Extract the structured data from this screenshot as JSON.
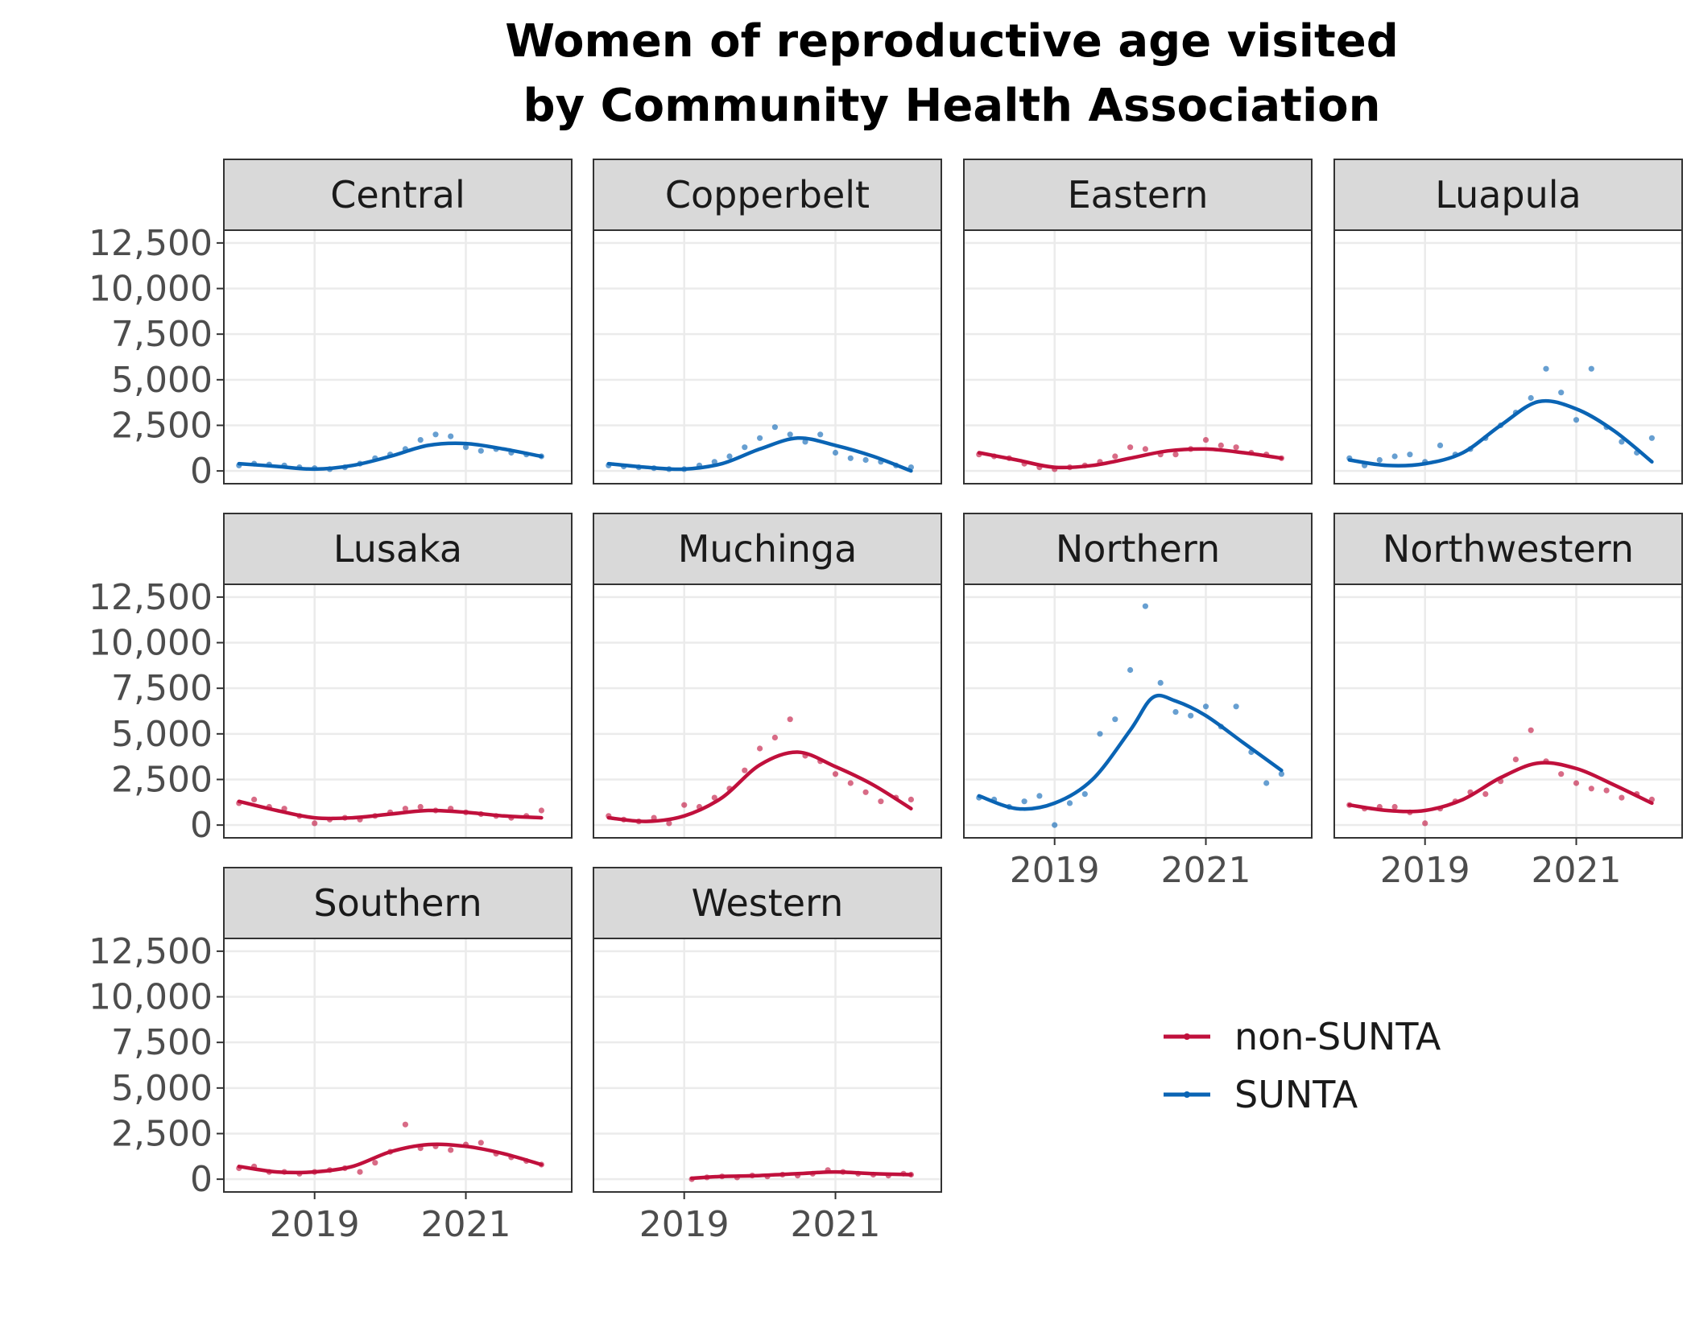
{
  "chart_data": {
    "type": "line",
    "title_lines": [
      "Women of reproductive age visited",
      "by Community Health Association"
    ],
    "xlabel": "",
    "ylabel": "",
    "xlim": [
      2017.8,
      2022.4
    ],
    "ylim": [
      -700,
      13200
    ],
    "x_ticks": [
      2019,
      2021
    ],
    "x_tick_labels": [
      "2019",
      "2021"
    ],
    "y_ticks": [
      0,
      2500,
      5000,
      7500,
      10000,
      12500
    ],
    "y_tick_labels": [
      "0",
      "2,500",
      "5,000",
      "7,500",
      "10,000",
      "12,500"
    ],
    "grid": true,
    "facet_layout": "wrap 4 columns",
    "legend": {
      "placement": "bottom-right empty facet area",
      "entries": [
        {
          "label": "non-SUNTA",
          "color": "#c0103c"
        },
        {
          "label": "SUNTA",
          "color": "#0a64b4"
        }
      ]
    },
    "colors": {
      "non-SUNTA": "#c0103c",
      "SUNTA": "#0a64b4",
      "strip_fill": "#d9d9d9",
      "grid": "#ebebeb"
    },
    "facets": [
      {
        "name": "Central",
        "group": "SUNTA",
        "smooth": {
          "x": [
            2018.0,
            2018.5,
            2019.0,
            2019.5,
            2020.0,
            2020.5,
            2021.0,
            2021.5,
            2022.0
          ],
          "y": [
            400,
            250,
            100,
            300,
            800,
            1400,
            1500,
            1200,
            800
          ]
        },
        "points": {
          "x": [
            2018.0,
            2018.2,
            2018.4,
            2018.6,
            2018.8,
            2019.0,
            2019.2,
            2019.4,
            2019.6,
            2019.8,
            2020.0,
            2020.2,
            2020.4,
            2020.6,
            2020.8,
            2021.0,
            2021.2,
            2021.4,
            2021.6,
            2021.8,
            2022.0
          ],
          "y": [
            300,
            400,
            350,
            300,
            200,
            150,
            100,
            200,
            400,
            700,
            900,
            1200,
            1700,
            2000,
            1900,
            1300,
            1100,
            1200,
            1000,
            900,
            800
          ]
        }
      },
      {
        "name": "Copperbelt",
        "group": "SUNTA",
        "smooth": {
          "x": [
            2018.0,
            2018.5,
            2019.0,
            2019.5,
            2020.0,
            2020.5,
            2021.0,
            2021.5,
            2022.0
          ],
          "y": [
            400,
            200,
            100,
            400,
            1200,
            1800,
            1400,
            800,
            0
          ]
        },
        "points": {
          "x": [
            2018.0,
            2018.2,
            2018.4,
            2018.6,
            2018.8,
            2019.0,
            2019.2,
            2019.4,
            2019.6,
            2019.8,
            2020.0,
            2020.2,
            2020.4,
            2020.6,
            2020.8,
            2021.0,
            2021.2,
            2021.4,
            2021.6,
            2021.8,
            2022.0
          ],
          "y": [
            300,
            250,
            200,
            150,
            100,
            100,
            300,
            500,
            800,
            1300,
            1800,
            2400,
            2000,
            1600,
            2000,
            1000,
            700,
            600,
            500,
            300,
            200
          ]
        }
      },
      {
        "name": "Eastern",
        "group": "non-SUNTA",
        "smooth": {
          "x": [
            2018.0,
            2018.5,
            2019.0,
            2019.5,
            2020.0,
            2020.5,
            2021.0,
            2021.5,
            2022.0
          ],
          "y": [
            1000,
            600,
            200,
            300,
            700,
            1100,
            1200,
            1000,
            700
          ]
        },
        "points": {
          "x": [
            2018.0,
            2018.2,
            2018.4,
            2018.6,
            2018.8,
            2019.0,
            2019.2,
            2019.4,
            2019.6,
            2019.8,
            2020.0,
            2020.2,
            2020.4,
            2020.6,
            2020.8,
            2021.0,
            2021.2,
            2021.4,
            2021.6,
            2021.8,
            2022.0
          ],
          "y": [
            900,
            800,
            700,
            400,
            200,
            100,
            200,
            300,
            500,
            800,
            1300,
            1200,
            900,
            900,
            1200,
            1700,
            1400,
            1300,
            1000,
            900,
            700
          ]
        }
      },
      {
        "name": "Luapula",
        "group": "SUNTA",
        "smooth": {
          "x": [
            2018.0,
            2018.5,
            2019.0,
            2019.5,
            2020.0,
            2020.5,
            2021.0,
            2021.5,
            2022.0
          ],
          "y": [
            600,
            300,
            400,
            1000,
            2500,
            3800,
            3400,
            2200,
            500
          ]
        },
        "points": {
          "x": [
            2018.0,
            2018.2,
            2018.4,
            2018.6,
            2018.8,
            2019.0,
            2019.2,
            2019.4,
            2019.6,
            2019.8,
            2020.0,
            2020.2,
            2020.4,
            2020.6,
            2020.8,
            2021.0,
            2021.2,
            2021.4,
            2021.6,
            2021.8,
            2022.0
          ],
          "y": [
            700,
            300,
            600,
            800,
            900,
            500,
            1400,
            900,
            1200,
            1800,
            2500,
            3200,
            4000,
            5600,
            4300,
            2800,
            5600,
            2400,
            1600,
            1000,
            1800
          ]
        }
      },
      {
        "name": "Lusaka",
        "group": "non-SUNTA",
        "smooth": {
          "x": [
            2018.0,
            2018.5,
            2019.0,
            2019.5,
            2020.0,
            2020.5,
            2021.0,
            2021.5,
            2022.0
          ],
          "y": [
            1300,
            800,
            400,
            400,
            600,
            800,
            700,
            500,
            400
          ]
        },
        "points": {
          "x": [
            2018.0,
            2018.2,
            2018.4,
            2018.6,
            2018.8,
            2019.0,
            2019.2,
            2019.4,
            2019.6,
            2019.8,
            2020.0,
            2020.2,
            2020.4,
            2020.6,
            2020.8,
            2021.0,
            2021.2,
            2021.4,
            2021.6,
            2021.8,
            2022.0
          ],
          "y": [
            1200,
            1400,
            1000,
            900,
            500,
            100,
            300,
            400,
            300,
            500,
            700,
            900,
            1000,
            800,
            900,
            700,
            600,
            500,
            400,
            500,
            800
          ]
        }
      },
      {
        "name": "Muchinga",
        "group": "non-SUNTA",
        "smooth": {
          "x": [
            2018.0,
            2018.5,
            2019.0,
            2019.5,
            2020.0,
            2020.5,
            2021.0,
            2021.5,
            2022.0
          ],
          "y": [
            400,
            200,
            500,
            1500,
            3300,
            4000,
            3200,
            2200,
            900
          ]
        },
        "points": {
          "x": [
            2018.0,
            2018.2,
            2018.4,
            2018.6,
            2018.8,
            2019.0,
            2019.2,
            2019.4,
            2019.6,
            2019.8,
            2020.0,
            2020.2,
            2020.4,
            2020.6,
            2020.8,
            2021.0,
            2021.2,
            2021.4,
            2021.6,
            2021.8,
            2022.0
          ],
          "y": [
            500,
            300,
            200,
            400,
            100,
            1100,
            1000,
            1500,
            2000,
            3000,
            4200,
            4800,
            5800,
            3800,
            3500,
            2800,
            2300,
            1800,
            1300,
            1500,
            1400
          ]
        }
      },
      {
        "name": "Northern",
        "group": "SUNTA",
        "smooth": {
          "x": [
            2018.0,
            2018.5,
            2019.0,
            2019.5,
            2020.0,
            2020.3,
            2020.6,
            2021.0,
            2021.5,
            2022.0
          ],
          "y": [
            1600,
            900,
            1200,
            2500,
            5200,
            7000,
            6800,
            6000,
            4500,
            3000
          ]
        },
        "points": {
          "x": [
            2018.0,
            2018.2,
            2018.4,
            2018.6,
            2018.8,
            2019.0,
            2019.2,
            2019.4,
            2019.6,
            2019.8,
            2020.0,
            2020.2,
            2020.4,
            2020.6,
            2020.8,
            2021.0,
            2021.2,
            2021.4,
            2021.6,
            2021.8,
            2022.0
          ],
          "y": [
            1500,
            1400,
            1000,
            1300,
            1600,
            0,
            1200,
            1700,
            5000,
            5800,
            8500,
            12000,
            7800,
            6200,
            6000,
            6500,
            5400,
            6500,
            4000,
            2300,
            2800
          ]
        }
      },
      {
        "name": "Northwestern",
        "group": "non-SUNTA",
        "smooth": {
          "x": [
            2018.0,
            2018.5,
            2019.0,
            2019.5,
            2020.0,
            2020.5,
            2021.0,
            2021.5,
            2022.0
          ],
          "y": [
            1100,
            800,
            800,
            1400,
            2600,
            3400,
            3100,
            2200,
            1200
          ]
        },
        "points": {
          "x": [
            2018.0,
            2018.2,
            2018.4,
            2018.6,
            2018.8,
            2019.0,
            2019.2,
            2019.4,
            2019.6,
            2019.8,
            2020.0,
            2020.2,
            2020.4,
            2020.6,
            2020.8,
            2021.0,
            2021.2,
            2021.4,
            2021.6,
            2021.8,
            2022.0
          ],
          "y": [
            1100,
            900,
            1000,
            1000,
            700,
            100,
            900,
            1300,
            1800,
            1700,
            2400,
            3600,
            5200,
            3500,
            2800,
            2300,
            2000,
            1900,
            1500,
            1700,
            1400
          ]
        }
      },
      {
        "name": "Southern",
        "group": "non-SUNTA",
        "smooth": {
          "x": [
            2018.0,
            2018.5,
            2019.0,
            2019.5,
            2020.0,
            2020.5,
            2021.0,
            2021.5,
            2022.0
          ],
          "y": [
            700,
            400,
            400,
            700,
            1500,
            1900,
            1800,
            1400,
            800
          ]
        },
        "points": {
          "x": [
            2018.0,
            2018.2,
            2018.4,
            2018.6,
            2018.8,
            2019.0,
            2019.2,
            2019.4,
            2019.6,
            2019.8,
            2020.0,
            2020.2,
            2020.4,
            2020.6,
            2020.8,
            2021.0,
            2021.2,
            2021.4,
            2021.6,
            2021.8,
            2022.0
          ],
          "y": [
            600,
            700,
            400,
            400,
            300,
            400,
            500,
            600,
            400,
            900,
            1500,
            3000,
            1700,
            1800,
            1600,
            1900,
            2000,
            1400,
            1200,
            1000,
            800
          ]
        }
      },
      {
        "name": "Western",
        "group": "non-SUNTA",
        "smooth": {
          "x": [
            2019.1,
            2019.5,
            2020.0,
            2020.5,
            2021.0,
            2021.5,
            2022.0
          ],
          "y": [
            50,
            150,
            200,
            300,
            400,
            300,
            250
          ]
        },
        "points": {
          "x": [
            2019.1,
            2019.3,
            2019.5,
            2019.7,
            2019.9,
            2020.1,
            2020.3,
            2020.5,
            2020.7,
            2020.9,
            2021.1,
            2021.3,
            2021.5,
            2021.7,
            2021.9,
            2022.0
          ],
          "y": [
            0,
            100,
            150,
            100,
            200,
            150,
            250,
            200,
            300,
            500,
            400,
            300,
            250,
            200,
            300,
            250
          ]
        }
      }
    ]
  }
}
